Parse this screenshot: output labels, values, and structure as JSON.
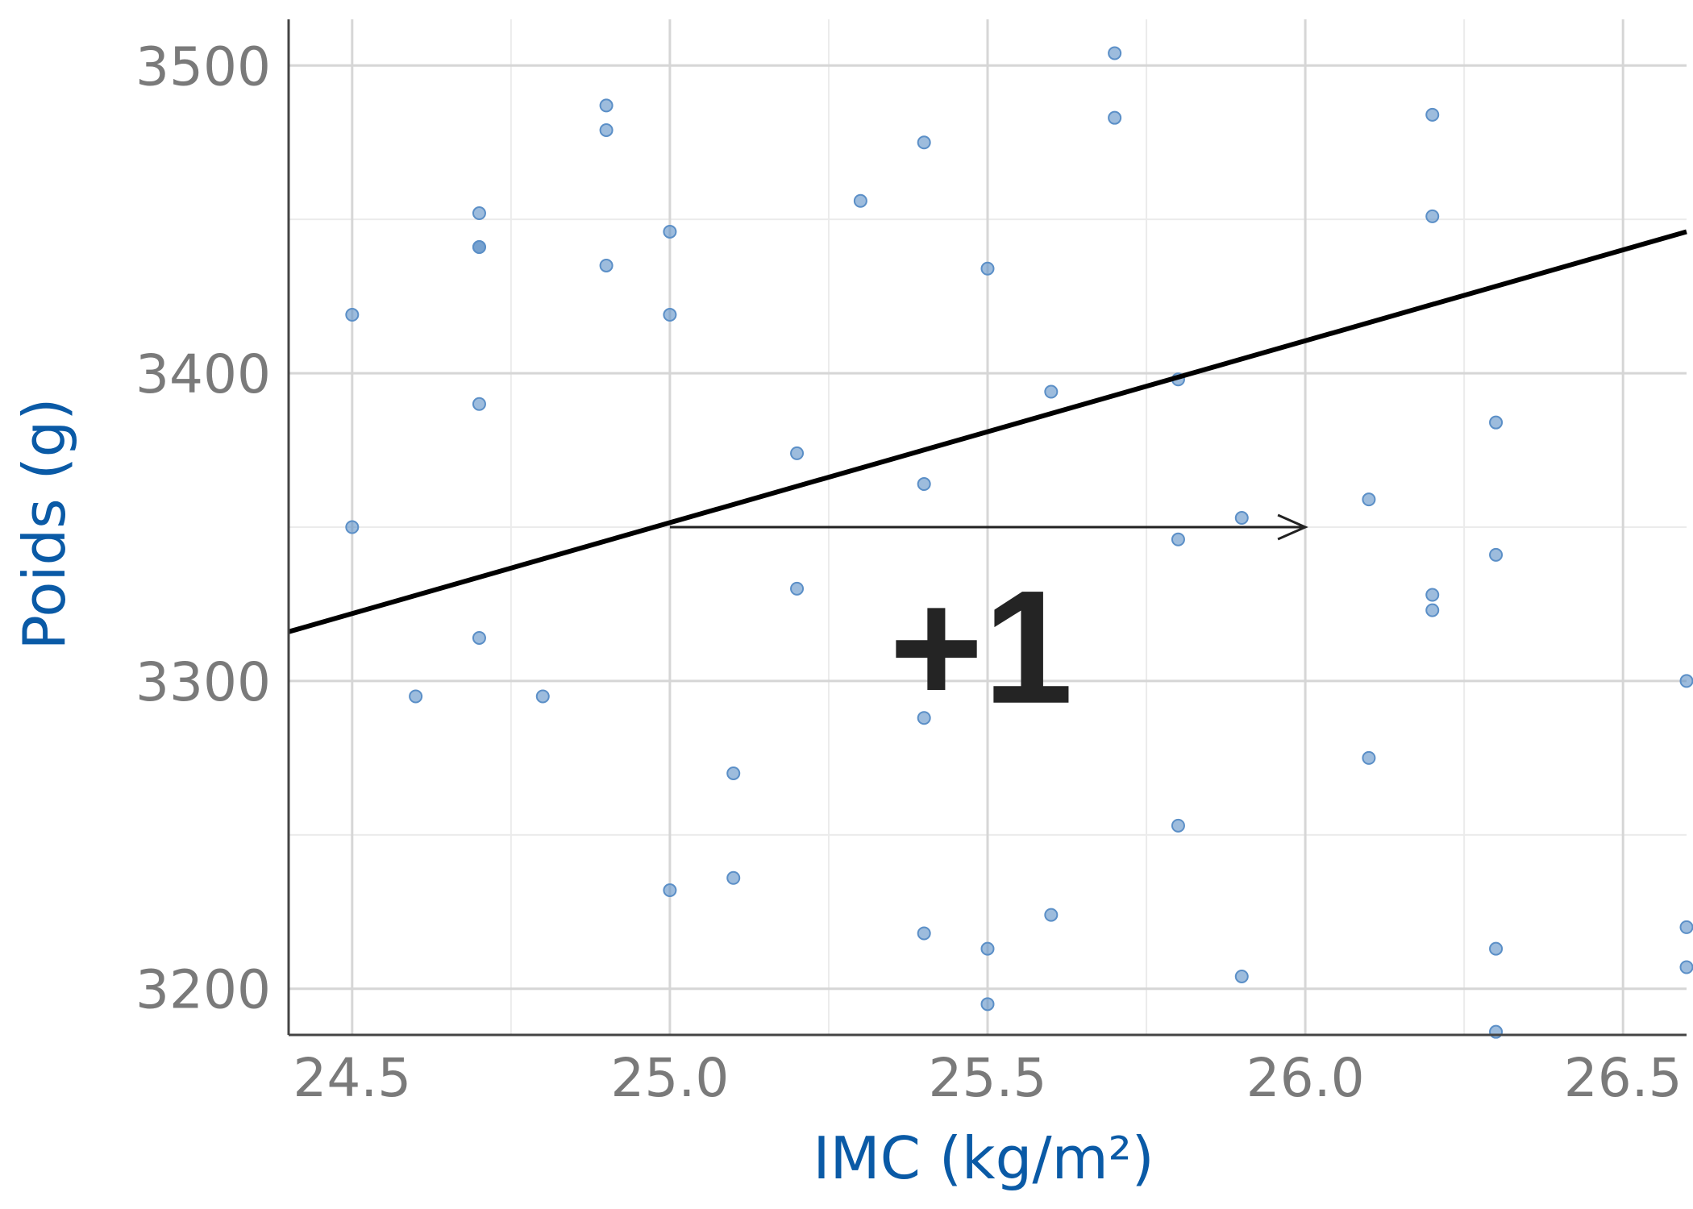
{
  "chart_data": {
    "type": "scatter",
    "xlabel": "IMC (kg/m²)",
    "ylabel": "Poids (g)",
    "xlim": [
      24.4,
      26.6
    ],
    "ylim": [
      3185,
      3515
    ],
    "x_ticks": [
      24.5,
      25.0,
      25.5,
      26.0,
      26.5
    ],
    "x_tick_labels": [
      "24.5",
      "25.0",
      "25.5",
      "26.0",
      "26.5"
    ],
    "y_ticks": [
      3200,
      3300,
      3400,
      3500
    ],
    "y_tick_labels": [
      "3200",
      "3300",
      "3400",
      "3500"
    ],
    "grid": true,
    "point_color": "#5b8fc7",
    "axis_title_color": "#0a5aa6",
    "regression_line": {
      "x": [
        24.4,
        26.6
      ],
      "y": [
        3316,
        3446
      ]
    },
    "arrow": {
      "x_start": 25.0,
      "x_end": 26.0,
      "y": 3350
    },
    "annotation": {
      "text": "+1",
      "x": 25.5,
      "y": 3310
    },
    "points": [
      {
        "x": 24.5,
        "y": 3419
      },
      {
        "x": 24.5,
        "y": 3350
      },
      {
        "x": 24.6,
        "y": 3295
      },
      {
        "x": 24.7,
        "y": 3452
      },
      {
        "x": 24.7,
        "y": 3441
      },
      {
        "x": 24.7,
        "y": 3441
      },
      {
        "x": 24.7,
        "y": 3390
      },
      {
        "x": 24.7,
        "y": 3314
      },
      {
        "x": 24.8,
        "y": 3295
      },
      {
        "x": 24.9,
        "y": 3487
      },
      {
        "x": 24.9,
        "y": 3479
      },
      {
        "x": 24.9,
        "y": 3435
      },
      {
        "x": 25.0,
        "y": 3446
      },
      {
        "x": 25.0,
        "y": 3419
      },
      {
        "x": 25.0,
        "y": 3232
      },
      {
        "x": 25.1,
        "y": 3270
      },
      {
        "x": 25.1,
        "y": 3236
      },
      {
        "x": 25.2,
        "y": 3374
      },
      {
        "x": 25.2,
        "y": 3330
      },
      {
        "x": 25.3,
        "y": 3456
      },
      {
        "x": 25.4,
        "y": 3475
      },
      {
        "x": 25.4,
        "y": 3364
      },
      {
        "x": 25.4,
        "y": 3288
      },
      {
        "x": 25.4,
        "y": 3218
      },
      {
        "x": 25.5,
        "y": 3434
      },
      {
        "x": 25.5,
        "y": 3213
      },
      {
        "x": 25.5,
        "y": 3195
      },
      {
        "x": 25.6,
        "y": 3394
      },
      {
        "x": 25.6,
        "y": 3224
      },
      {
        "x": 25.7,
        "y": 3504
      },
      {
        "x": 25.7,
        "y": 3483
      },
      {
        "x": 25.8,
        "y": 3398
      },
      {
        "x": 25.8,
        "y": 3346
      },
      {
        "x": 25.8,
        "y": 3253
      },
      {
        "x": 25.9,
        "y": 3353
      },
      {
        "x": 25.9,
        "y": 3204
      },
      {
        "x": 26.1,
        "y": 3359
      },
      {
        "x": 26.1,
        "y": 3275
      },
      {
        "x": 26.2,
        "y": 3484
      },
      {
        "x": 26.2,
        "y": 3451
      },
      {
        "x": 26.2,
        "y": 3328
      },
      {
        "x": 26.2,
        "y": 3323
      },
      {
        "x": 26.3,
        "y": 3384
      },
      {
        "x": 26.3,
        "y": 3341
      },
      {
        "x": 26.3,
        "y": 3213
      },
      {
        "x": 26.3,
        "y": 3186
      },
      {
        "x": 26.6,
        "y": 3300
      },
      {
        "x": 26.6,
        "y": 3220
      },
      {
        "x": 26.6,
        "y": 3207
      }
    ]
  }
}
